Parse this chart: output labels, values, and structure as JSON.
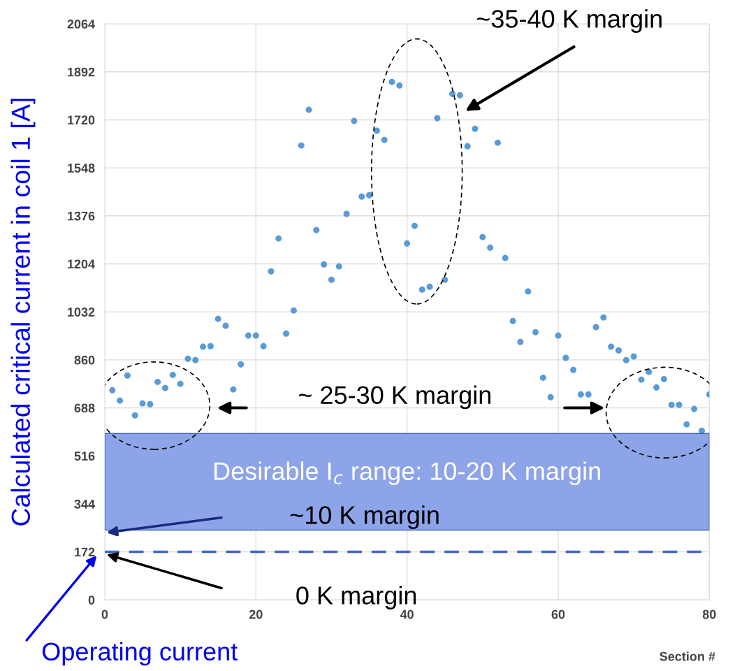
{
  "chart_data": {
    "type": "scatter",
    "xlabel": "Section #",
    "ylabel": "Calculated critical current in coil 1 [A]",
    "x": [
      1,
      2,
      3,
      4,
      5,
      6,
      7,
      8,
      9,
      10,
      11,
      12,
      13,
      14,
      15,
      16,
      17,
      18,
      19,
      20,
      21,
      22,
      23,
      24,
      25,
      26,
      27,
      28,
      29,
      30,
      31,
      32,
      33,
      34,
      35,
      36,
      37,
      38,
      39,
      40,
      41,
      42,
      43,
      44,
      45,
      46,
      47,
      48,
      49,
      50,
      51,
      52,
      53,
      54,
      55,
      56,
      57,
      58,
      59,
      60,
      61,
      62,
      63,
      64,
      65,
      66,
      67,
      68,
      69,
      70,
      71,
      72,
      73,
      74,
      75,
      76,
      77,
      78,
      79,
      80
    ],
    "series": [
      {
        "color": "#5b9bd5",
        "values": [
          751,
          714,
          804,
          661,
          704,
          701,
          781,
          759,
          806,
          774,
          864,
          859,
          907,
          909,
          1007,
          982,
          754,
          844,
          947,
          947,
          909,
          1177,
          1295,
          954,
          1037,
          1628,
          1756,
          1325,
          1202,
          1147,
          1195,
          1383,
          1716,
          1445,
          1450,
          1681,
          1648,
          1856,
          1843,
          1277,
          1340,
          1112,
          1122,
          1726,
          1147,
          1813,
          1808,
          1625,
          1688,
          1300,
          1262,
          1638,
          1225,
          999,
          924,
          1105,
          959,
          796,
          726,
          947,
          867,
          824,
          736,
          736,
          977,
          1012,
          907,
          894,
          859,
          872,
          789,
          817,
          761,
          791,
          699,
          699,
          629,
          684,
          606,
          736
        ]
      }
    ],
    "marker": "circle",
    "xlim": [
      0,
      80
    ],
    "xticks": [
      0,
      20,
      40,
      60,
      80
    ],
    "ylim": [
      0,
      2064
    ],
    "yticks": [
      0,
      172,
      344,
      516,
      688,
      860,
      1032,
      1204,
      1376,
      1548,
      1720,
      1892,
      2064
    ],
    "grid": true,
    "bands": [
      {
        "axis": "y",
        "from": 250,
        "to": 596,
        "label": "Desirable I$_{c}$ range: 10-20 K margin",
        "color": "#8ea4e8"
      }
    ],
    "ref_lines": [
      {
        "axis": "y",
        "value": 172,
        "label": null,
        "color": "#4466c4",
        "line_style": "dashed"
      }
    ],
    "annotations": [
      "~35-40 K margin",
      "~ 25-30 K margin",
      "~10 K margin",
      "0 K margin",
      "Operating current"
    ]
  }
}
